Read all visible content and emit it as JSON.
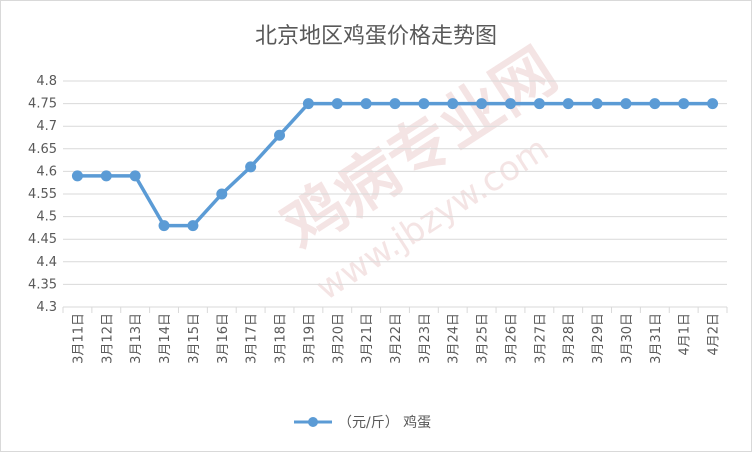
{
  "chart_data": {
    "type": "line",
    "title": "北京地区鸡蛋价格走势图",
    "categories": [
      "3月11日",
      "3月12日",
      "3月13日",
      "3月14日",
      "3月15日",
      "3月16日",
      "3月17日",
      "3月18日",
      "3月19日",
      "3月20日",
      "3月21日",
      "3月22日",
      "3月23日",
      "3月24日",
      "3月25日",
      "3月26日",
      "3月27日",
      "3月28日",
      "3月29日",
      "3月30日",
      "3月31日",
      "4月1日",
      "4月2日"
    ],
    "series": [
      {
        "name": "（元/斤） 鸡蛋",
        "color": "#5b9bd5",
        "values": [
          4.59,
          4.59,
          4.59,
          4.48,
          4.48,
          4.55,
          4.61,
          4.68,
          4.75,
          4.75,
          4.75,
          4.75,
          4.75,
          4.75,
          4.75,
          4.75,
          4.75,
          4.75,
          4.75,
          4.75,
          4.75,
          4.75,
          4.75
        ]
      }
    ],
    "ylim": [
      4.3,
      4.8
    ],
    "yticks": [
      "4.3",
      "4.35",
      "4.4",
      "4.45",
      "4.5",
      "4.55",
      "4.6",
      "4.65",
      "4.7",
      "4.75",
      "4.8"
    ],
    "grid": true,
    "legend": "bottom",
    "watermark": [
      "鸡病专业网",
      "www.jbzyw.com"
    ]
  }
}
